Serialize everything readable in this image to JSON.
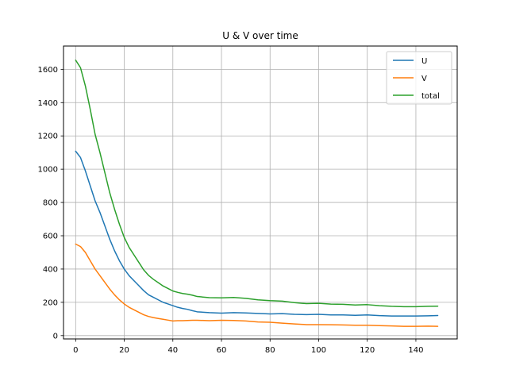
{
  "chart_data": {
    "type": "line",
    "title": "U & V over time",
    "xlabel": "",
    "ylabel": "",
    "xlim": [
      -5,
      157
    ],
    "ylim": [
      -20,
      1740
    ],
    "xticks": [
      0,
      20,
      40,
      60,
      80,
      100,
      120,
      140
    ],
    "yticks": [
      0,
      200,
      400,
      600,
      800,
      1000,
      1200,
      1400,
      1600
    ],
    "grid": true,
    "legend_position": "top-right",
    "x": [
      0,
      2,
      4,
      6,
      8,
      10,
      12,
      14,
      16,
      18,
      20,
      22,
      24,
      26,
      28,
      30,
      32,
      34,
      36,
      38,
      40,
      42,
      44,
      46,
      48,
      50,
      55,
      60,
      65,
      70,
      75,
      80,
      85,
      90,
      95,
      100,
      105,
      110,
      115,
      120,
      125,
      130,
      135,
      140,
      145,
      149
    ],
    "series": [
      {
        "name": "U",
        "color": "#1f77b4",
        "values": [
          1108,
          1070,
          990,
          900,
          810,
          740,
          660,
          580,
          510,
          450,
          400,
          360,
          330,
          300,
          270,
          245,
          230,
          215,
          200,
          190,
          180,
          170,
          163,
          158,
          150,
          143,
          138,
          135,
          138,
          136,
          133,
          130,
          132,
          128,
          126,
          128,
          124,
          124,
          122,
          124,
          120,
          118,
          118,
          118,
          119,
          121
        ]
      },
      {
        "name": "V",
        "color": "#ff7f0e",
        "values": [
          550,
          535,
          500,
          450,
          400,
          360,
          320,
          280,
          245,
          215,
          190,
          170,
          155,
          140,
          125,
          115,
          108,
          103,
          98,
          93,
          88,
          90,
          90,
          91,
          92,
          92,
          90,
          92,
          91,
          88,
          82,
          80,
          75,
          70,
          66,
          66,
          65,
          64,
          62,
          62,
          60,
          58,
          56,
          56,
          57,
          56
        ]
      },
      {
        "name": "total",
        "color": "#2ca02c",
        "values": [
          1655,
          1610,
          1500,
          1360,
          1210,
          1100,
          980,
          860,
          760,
          670,
          590,
          530,
          485,
          440,
          395,
          362,
          338,
          318,
          298,
          283,
          268,
          260,
          253,
          249,
          243,
          235,
          228,
          227,
          229,
          224,
          215,
          210,
          207,
          198,
          192,
          194,
          189,
          188,
          184,
          186,
          180,
          176,
          174,
          174,
          176,
          177
        ]
      }
    ]
  }
}
